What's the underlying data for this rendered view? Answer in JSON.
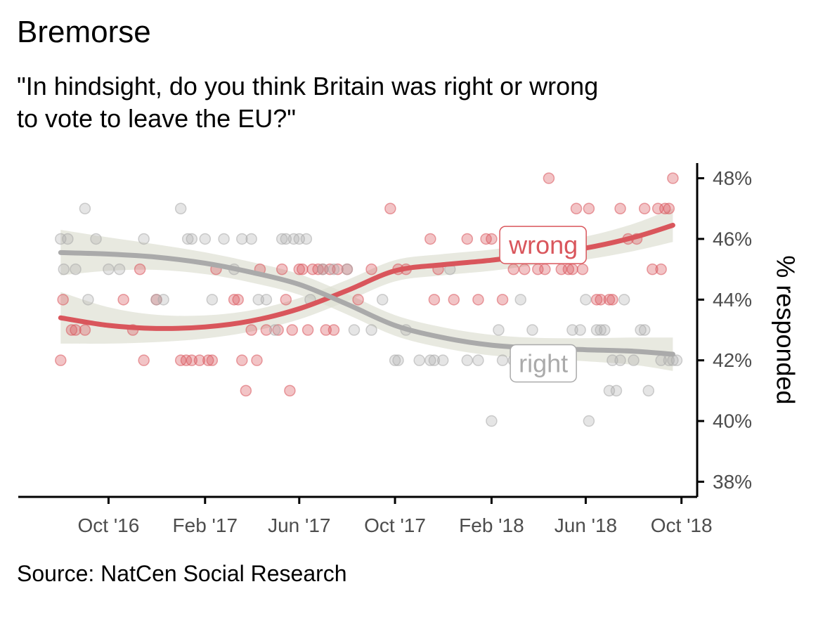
{
  "title": "Bremorse",
  "subtitle": "\"In hindsight, do you think Britain was right or wrong\n to vote to leave the EU?\"",
  "caption": "Source: NatCen Social Research",
  "colors": {
    "wrong": "#d9565c",
    "right": "#aaaaaa",
    "ribbon": "#dedfd3",
    "axis": "#000000",
    "tick_text": "#4d4d4d"
  },
  "chart_data": {
    "type": "scatter",
    "xlabel": "",
    "ylabel": "% responded",
    "y_axis_position": "right",
    "x_axis_type": "date",
    "xlim": [
      "2016-06-08",
      "2018-10-21"
    ],
    "ylim": [
      37.5,
      48.5
    ],
    "x_ticks": [
      {
        "date": "2016-10-01",
        "label": "Oct '16"
      },
      {
        "date": "2017-02-01",
        "label": "Feb '17"
      },
      {
        "date": "2017-06-01",
        "label": "Jun '17"
      },
      {
        "date": "2017-10-01",
        "label": "Oct '17"
      },
      {
        "date": "2018-02-01",
        "label": "Feb '18"
      },
      {
        "date": "2018-06-01",
        "label": "Jun '18"
      },
      {
        "date": "2018-10-01",
        "label": "Oct '18"
      }
    ],
    "y_ticks": [
      {
        "value": 38,
        "label": "38%"
      },
      {
        "value": 40,
        "label": "40%"
      },
      {
        "value": 42,
        "label": "42%"
      },
      {
        "value": 44,
        "label": "44%"
      },
      {
        "value": 46,
        "label": "46%"
      },
      {
        "value": 48,
        "label": "48%"
      }
    ],
    "grid": false,
    "legend": "none",
    "series": [
      {
        "name": "wrong",
        "label": {
          "text": "wrong",
          "date": "2018-04-08",
          "value": 45.8
        },
        "points": [
          [
            "2016-08-01",
            42
          ],
          [
            "2016-08-04",
            44
          ],
          [
            "2016-08-15",
            43
          ],
          [
            "2016-08-20",
            43
          ],
          [
            "2016-09-01",
            43
          ],
          [
            "2016-10-20",
            44
          ],
          [
            "2016-11-01",
            43
          ],
          [
            "2016-11-10",
            45
          ],
          [
            "2016-11-15",
            42
          ],
          [
            "2016-12-01",
            44
          ],
          [
            "2017-01-01",
            42
          ],
          [
            "2017-01-08",
            42
          ],
          [
            "2017-01-15",
            42
          ],
          [
            "2017-01-25",
            42
          ],
          [
            "2017-02-05",
            42
          ],
          [
            "2017-02-10",
            42
          ],
          [
            "2017-02-15",
            45
          ],
          [
            "2017-03-10",
            44
          ],
          [
            "2017-03-15",
            44
          ],
          [
            "2017-03-20",
            42
          ],
          [
            "2017-03-25",
            41
          ],
          [
            "2017-04-01",
            43
          ],
          [
            "2017-04-08",
            42
          ],
          [
            "2017-04-12",
            45
          ],
          [
            "2017-04-20",
            43
          ],
          [
            "2017-05-05",
            43
          ],
          [
            "2017-05-10",
            45
          ],
          [
            "2017-05-15",
            44
          ],
          [
            "2017-05-20",
            41
          ],
          [
            "2017-05-23",
            43
          ],
          [
            "2017-06-01",
            45
          ],
          [
            "2017-06-05",
            45
          ],
          [
            "2017-06-12",
            43
          ],
          [
            "2017-06-18",
            45
          ],
          [
            "2017-06-25",
            45
          ],
          [
            "2017-07-01",
            45
          ],
          [
            "2017-07-05",
            43
          ],
          [
            "2017-07-10",
            45
          ],
          [
            "2017-07-15",
            43
          ],
          [
            "2017-07-20",
            45
          ],
          [
            "2017-08-01",
            45
          ],
          [
            "2017-08-15",
            44
          ],
          [
            "2017-09-01",
            45
          ],
          [
            "2017-09-25",
            47
          ],
          [
            "2017-10-05",
            45
          ],
          [
            "2017-10-15",
            45
          ],
          [
            "2017-11-15",
            46
          ],
          [
            "2017-11-20",
            44
          ],
          [
            "2017-11-25",
            45
          ],
          [
            "2017-12-15",
            44
          ],
          [
            "2018-01-01",
            46
          ],
          [
            "2018-01-15",
            44
          ],
          [
            "2018-01-25",
            46
          ],
          [
            "2018-02-01",
            46
          ],
          [
            "2018-02-15",
            44
          ],
          [
            "2018-03-01",
            45
          ],
          [
            "2018-03-15",
            45
          ],
          [
            "2018-04-01",
            45
          ],
          [
            "2018-04-10",
            45
          ],
          [
            "2018-04-15",
            48
          ],
          [
            "2018-04-20",
            46
          ],
          [
            "2018-05-01",
            45
          ],
          [
            "2018-05-10",
            45
          ],
          [
            "2018-05-15",
            45
          ],
          [
            "2018-05-20",
            47
          ],
          [
            "2018-05-28",
            45
          ],
          [
            "2018-06-05",
            47
          ],
          [
            "2018-06-15",
            44
          ],
          [
            "2018-06-20",
            44
          ],
          [
            "2018-07-01",
            44
          ],
          [
            "2018-07-05",
            44
          ],
          [
            "2018-07-15",
            47
          ],
          [
            "2018-07-25",
            46
          ],
          [
            "2018-08-05",
            46
          ],
          [
            "2018-08-15",
            47
          ],
          [
            "2018-08-25",
            45
          ],
          [
            "2018-09-01",
            47
          ],
          [
            "2018-09-05",
            45
          ],
          [
            "2018-09-10",
            47
          ],
          [
            "2018-09-15",
            47
          ],
          [
            "2018-09-20",
            48
          ]
        ],
        "smooth": [
          [
            "2016-08-01",
            43.4
          ],
          [
            "2016-10-01",
            43.15
          ],
          [
            "2016-12-01",
            43.05
          ],
          [
            "2017-02-01",
            43.1
          ],
          [
            "2017-04-01",
            43.3
          ],
          [
            "2017-06-01",
            43.7
          ],
          [
            "2017-08-01",
            44.3
          ],
          [
            "2017-10-01",
            44.95
          ],
          [
            "2017-12-01",
            45.15
          ],
          [
            "2018-02-01",
            45.3
          ],
          [
            "2018-04-01",
            45.5
          ],
          [
            "2018-06-01",
            45.7
          ],
          [
            "2018-08-01",
            46.05
          ],
          [
            "2018-09-20",
            46.45
          ]
        ],
        "smooth_se": [
          0.85,
          0.6,
          0.45,
          0.38,
          0.35,
          0.35,
          0.35,
          0.35,
          0.35,
          0.35,
          0.35,
          0.38,
          0.45,
          0.55
        ]
      },
      {
        "name": "right",
        "label": {
          "text": "right",
          "date": "2018-04-08",
          "value": 41.9
        },
        "points": [
          [
            "2016-08-01",
            46
          ],
          [
            "2016-08-05",
            45
          ],
          [
            "2016-08-10",
            46
          ],
          [
            "2016-08-20",
            45
          ],
          [
            "2016-09-01",
            47
          ],
          [
            "2016-09-05",
            44
          ],
          [
            "2016-09-15",
            46
          ],
          [
            "2016-10-01",
            45
          ],
          [
            "2016-10-15",
            45
          ],
          [
            "2016-11-15",
            46
          ],
          [
            "2016-12-01",
            44
          ],
          [
            "2016-12-10",
            44
          ],
          [
            "2017-01-01",
            47
          ],
          [
            "2017-01-10",
            46
          ],
          [
            "2017-01-15",
            46
          ],
          [
            "2017-02-01",
            46
          ],
          [
            "2017-02-10",
            44
          ],
          [
            "2017-02-25",
            46
          ],
          [
            "2017-03-10",
            45
          ],
          [
            "2017-03-20",
            46
          ],
          [
            "2017-04-01",
            46
          ],
          [
            "2017-04-10",
            44
          ],
          [
            "2017-04-20",
            44
          ],
          [
            "2017-05-01",
            43
          ],
          [
            "2017-05-10",
            46
          ],
          [
            "2017-05-15",
            46
          ],
          [
            "2017-05-25",
            46
          ],
          [
            "2017-06-01",
            46
          ],
          [
            "2017-06-10",
            46
          ],
          [
            "2017-06-15",
            44
          ],
          [
            "2017-07-01",
            45
          ],
          [
            "2017-07-15",
            45
          ],
          [
            "2017-08-01",
            45
          ],
          [
            "2017-08-10",
            43
          ],
          [
            "2017-09-01",
            43
          ],
          [
            "2017-09-15",
            44
          ],
          [
            "2017-10-01",
            42
          ],
          [
            "2017-10-05",
            42
          ],
          [
            "2017-10-15",
            43
          ],
          [
            "2017-11-01",
            42
          ],
          [
            "2017-11-15",
            42
          ],
          [
            "2017-11-20",
            42
          ],
          [
            "2017-12-01",
            42
          ],
          [
            "2017-12-10",
            45
          ],
          [
            "2018-01-01",
            42
          ],
          [
            "2018-01-15",
            42
          ],
          [
            "2018-02-01",
            40
          ],
          [
            "2018-02-10",
            43
          ],
          [
            "2018-02-15",
            42
          ],
          [
            "2018-03-01",
            42
          ],
          [
            "2018-03-10",
            44
          ],
          [
            "2018-03-15",
            42
          ],
          [
            "2018-03-25",
            43
          ],
          [
            "2018-04-01",
            42
          ],
          [
            "2018-04-10",
            42
          ],
          [
            "2018-05-01",
            42
          ],
          [
            "2018-05-15",
            43
          ],
          [
            "2018-05-25",
            43
          ],
          [
            "2018-06-01",
            44
          ],
          [
            "2018-06-05",
            40
          ],
          [
            "2018-06-15",
            43
          ],
          [
            "2018-06-20",
            43
          ],
          [
            "2018-06-25",
            43
          ],
          [
            "2018-07-01",
            41
          ],
          [
            "2018-07-05",
            42
          ],
          [
            "2018-07-10",
            41
          ],
          [
            "2018-07-15",
            42
          ],
          [
            "2018-07-20",
            44
          ],
          [
            "2018-08-01",
            42
          ],
          [
            "2018-08-10",
            43
          ],
          [
            "2018-08-15",
            43
          ],
          [
            "2018-08-20",
            41
          ],
          [
            "2018-09-05",
            42
          ],
          [
            "2018-09-15",
            42
          ],
          [
            "2018-09-20",
            42
          ],
          [
            "2018-09-25",
            42
          ]
        ],
        "smooth": [
          [
            "2016-08-01",
            45.55
          ],
          [
            "2016-10-01",
            45.5
          ],
          [
            "2016-12-01",
            45.4
          ],
          [
            "2017-02-01",
            45.2
          ],
          [
            "2017-04-01",
            44.9
          ],
          [
            "2017-06-01",
            44.5
          ],
          [
            "2017-08-01",
            43.85
          ],
          [
            "2017-10-01",
            43.15
          ],
          [
            "2017-12-01",
            42.75
          ],
          [
            "2018-02-01",
            42.5
          ],
          [
            "2018-04-01",
            42.4
          ],
          [
            "2018-06-01",
            42.35
          ],
          [
            "2018-08-01",
            42.3
          ],
          [
            "2018-09-20",
            42.2
          ]
        ],
        "smooth_se": [
          0.75,
          0.55,
          0.42,
          0.36,
          0.34,
          0.34,
          0.34,
          0.34,
          0.34,
          0.34,
          0.34,
          0.38,
          0.45,
          0.55
        ]
      }
    ]
  }
}
